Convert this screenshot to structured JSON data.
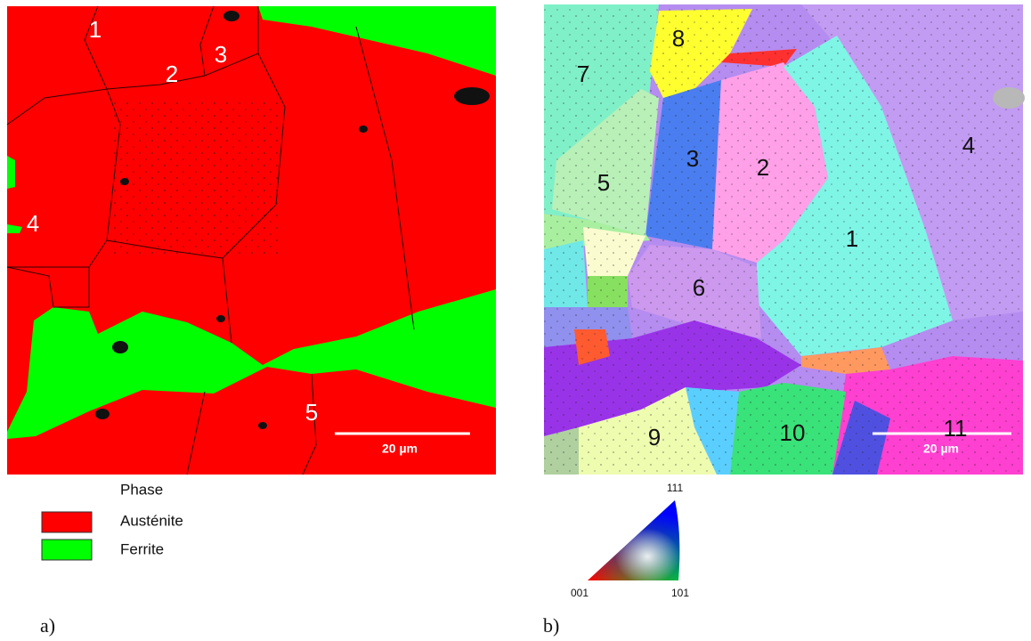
{
  "panels": [
    {
      "label": "a)",
      "scale_bar": "20 µm",
      "grain_labels": [
        "1",
        "2",
        "3",
        "4",
        "5"
      ],
      "legend": {
        "title": "Phase",
        "items": [
          "Austénite",
          "Ferrite"
        ]
      }
    },
    {
      "label": "b)",
      "scale_bar": "20 µm",
      "grain_labels": [
        "8",
        "7",
        "3",
        "2",
        "5",
        "4",
        "1",
        "6",
        "9",
        "10",
        "11"
      ],
      "ipf_key": {
        "top": "111",
        "left": "001",
        "right": "101"
      }
    }
  ]
}
